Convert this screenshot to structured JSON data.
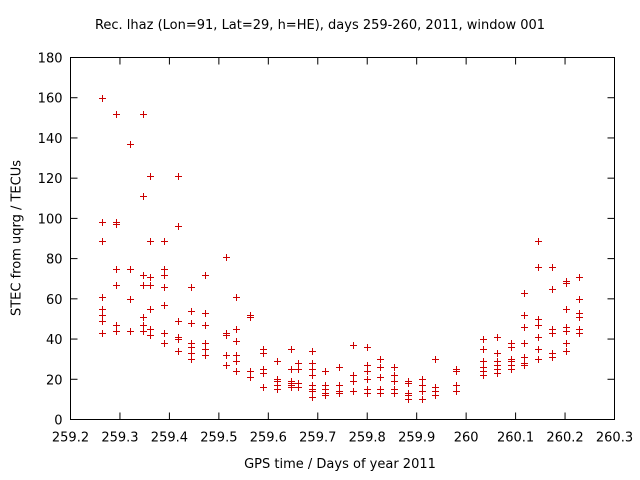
{
  "chart_data": {
    "type": "scatter",
    "title": "Rec. lhaz (Lon=91, Lat=29, h=HE), days 259-260, 2011, window 001",
    "xlabel": "GPS time / Days of year 2011",
    "ylabel": "STEC from uqrg / TECUs",
    "xlim": [
      259.2,
      260.3
    ],
    "ylim": [
      0,
      180
    ],
    "xticks": [
      "259.2",
      "259.3",
      "259.4",
      "259.5",
      "259.6",
      "259.7",
      "259.8",
      "259.9",
      "260",
      "260.1",
      "260.2",
      "260.3"
    ],
    "yticks": [
      "0",
      "20",
      "40",
      "60",
      "80",
      "100",
      "120",
      "140",
      "160",
      "180"
    ],
    "grid": false,
    "marker": "+",
    "color": "#cc0000",
    "points": [
      [
        259.264,
        160
      ],
      [
        259.264,
        98
      ],
      [
        259.264,
        89
      ],
      [
        259.264,
        61
      ],
      [
        259.264,
        55
      ],
      [
        259.264,
        52
      ],
      [
        259.264,
        49
      ],
      [
        259.264,
        43
      ],
      [
        259.292,
        152
      ],
      [
        259.292,
        98
      ],
      [
        259.292,
        97
      ],
      [
        259.292,
        75
      ],
      [
        259.292,
        67
      ],
      [
        259.292,
        47
      ],
      [
        259.292,
        44
      ],
      [
        259.32,
        137
      ],
      [
        259.32,
        75
      ],
      [
        259.32,
        60
      ],
      [
        259.32,
        44
      ],
      [
        259.32,
        44
      ],
      [
        259.347,
        152
      ],
      [
        259.347,
        111
      ],
      [
        259.347,
        72
      ],
      [
        259.347,
        67
      ],
      [
        259.347,
        51
      ],
      [
        259.347,
        47
      ],
      [
        259.347,
        44
      ],
      [
        259.361,
        121
      ],
      [
        259.361,
        89
      ],
      [
        259.361,
        71
      ],
      [
        259.361,
        67
      ],
      [
        259.361,
        55
      ],
      [
        259.361,
        45
      ],
      [
        259.361,
        42
      ],
      [
        259.389,
        89
      ],
      [
        259.389,
        75
      ],
      [
        259.389,
        72
      ],
      [
        259.389,
        66
      ],
      [
        259.389,
        57
      ],
      [
        259.389,
        43
      ],
      [
        259.389,
        38
      ],
      [
        259.417,
        121
      ],
      [
        259.417,
        96
      ],
      [
        259.417,
        49
      ],
      [
        259.417,
        41
      ],
      [
        259.417,
        40
      ],
      [
        259.417,
        34
      ],
      [
        259.444,
        66
      ],
      [
        259.444,
        54
      ],
      [
        259.444,
        48
      ],
      [
        259.444,
        38
      ],
      [
        259.444,
        36
      ],
      [
        259.444,
        33
      ],
      [
        259.444,
        30
      ],
      [
        259.472,
        72
      ],
      [
        259.472,
        53
      ],
      [
        259.472,
        47
      ],
      [
        259.472,
        38
      ],
      [
        259.472,
        35
      ],
      [
        259.472,
        32
      ],
      [
        259.514,
        81
      ],
      [
        259.514,
        43
      ],
      [
        259.514,
        42
      ],
      [
        259.514,
        32
      ],
      [
        259.514,
        27
      ],
      [
        259.535,
        61
      ],
      [
        259.535,
        45
      ],
      [
        259.535,
        39
      ],
      [
        259.535,
        32
      ],
      [
        259.535,
        29
      ],
      [
        259.535,
        24
      ],
      [
        259.563,
        52
      ],
      [
        259.563,
        51
      ],
      [
        259.563,
        24
      ],
      [
        259.563,
        21
      ],
      [
        259.59,
        35
      ],
      [
        259.59,
        33
      ],
      [
        259.59,
        25
      ],
      [
        259.59,
        23
      ],
      [
        259.59,
        16
      ],
      [
        259.618,
        29
      ],
      [
        259.618,
        20
      ],
      [
        259.618,
        19
      ],
      [
        259.618,
        17
      ],
      [
        259.618,
        15
      ],
      [
        259.646,
        35
      ],
      [
        259.646,
        25
      ],
      [
        259.646,
        19
      ],
      [
        259.646,
        18
      ],
      [
        259.646,
        17
      ],
      [
        259.646,
        16
      ],
      [
        259.66,
        28
      ],
      [
        259.66,
        25
      ],
      [
        259.66,
        18
      ],
      [
        259.66,
        16
      ],
      [
        259.688,
        34
      ],
      [
        259.688,
        28
      ],
      [
        259.688,
        25
      ],
      [
        259.688,
        22
      ],
      [
        259.688,
        17
      ],
      [
        259.688,
        15
      ],
      [
        259.688,
        14
      ],
      [
        259.688,
        11
      ],
      [
        259.715,
        24
      ],
      [
        259.715,
        17
      ],
      [
        259.715,
        15
      ],
      [
        259.715,
        13
      ],
      [
        259.715,
        12
      ],
      [
        259.743,
        26
      ],
      [
        259.743,
        17
      ],
      [
        259.743,
        14
      ],
      [
        259.743,
        13
      ],
      [
        259.771,
        37
      ],
      [
        259.771,
        22
      ],
      [
        259.771,
        19
      ],
      [
        259.771,
        14
      ],
      [
        259.799,
        36
      ],
      [
        259.799,
        27
      ],
      [
        259.799,
        24
      ],
      [
        259.799,
        20
      ],
      [
        259.799,
        15
      ],
      [
        259.799,
        13
      ],
      [
        259.826,
        30
      ],
      [
        259.826,
        26
      ],
      [
        259.826,
        21
      ],
      [
        259.826,
        15
      ],
      [
        259.826,
        13
      ],
      [
        259.854,
        26
      ],
      [
        259.854,
        22
      ],
      [
        259.854,
        19
      ],
      [
        259.854,
        15
      ],
      [
        259.854,
        13
      ],
      [
        259.882,
        19
      ],
      [
        259.882,
        18
      ],
      [
        259.882,
        13
      ],
      [
        259.882,
        12
      ],
      [
        259.882,
        10
      ],
      [
        259.91,
        20
      ],
      [
        259.91,
        17
      ],
      [
        259.91,
        14
      ],
      [
        259.91,
        10
      ],
      [
        259.938,
        30
      ],
      [
        259.938,
        16
      ],
      [
        259.938,
        14
      ],
      [
        259.938,
        12
      ],
      [
        259.979,
        25
      ],
      [
        259.979,
        24
      ],
      [
        259.979,
        17
      ],
      [
        259.979,
        14
      ],
      [
        260.035,
        40
      ],
      [
        260.035,
        35
      ],
      [
        260.035,
        29
      ],
      [
        260.035,
        26
      ],
      [
        260.035,
        24
      ],
      [
        260.035,
        22
      ],
      [
        260.063,
        41
      ],
      [
        260.063,
        33
      ],
      [
        260.063,
        29
      ],
      [
        260.063,
        27
      ],
      [
        260.063,
        25
      ],
      [
        260.063,
        23
      ],
      [
        260.091,
        38
      ],
      [
        260.091,
        36
      ],
      [
        260.091,
        30
      ],
      [
        260.091,
        29
      ],
      [
        260.091,
        27
      ],
      [
        260.091,
        25
      ],
      [
        260.118,
        63
      ],
      [
        260.118,
        52
      ],
      [
        260.118,
        46
      ],
      [
        260.118,
        38
      ],
      [
        260.118,
        31
      ],
      [
        260.118,
        28
      ],
      [
        260.118,
        27
      ],
      [
        260.146,
        89
      ],
      [
        260.146,
        76
      ],
      [
        260.146,
        50
      ],
      [
        260.146,
        47
      ],
      [
        260.146,
        41
      ],
      [
        260.146,
        35
      ],
      [
        260.146,
        30
      ],
      [
        260.174,
        76
      ],
      [
        260.174,
        65
      ],
      [
        260.174,
        45
      ],
      [
        260.174,
        43
      ],
      [
        260.174,
        33
      ],
      [
        260.174,
        31
      ],
      [
        260.202,
        69
      ],
      [
        260.202,
        68
      ],
      [
        260.202,
        55
      ],
      [
        260.202,
        46
      ],
      [
        260.202,
        44
      ],
      [
        260.202,
        38
      ],
      [
        260.202,
        34
      ],
      [
        260.229,
        71
      ],
      [
        260.229,
        60
      ],
      [
        260.229,
        60
      ],
      [
        260.229,
        53
      ],
      [
        260.229,
        51
      ],
      [
        260.229,
        45
      ],
      [
        260.229,
        43
      ]
    ]
  }
}
